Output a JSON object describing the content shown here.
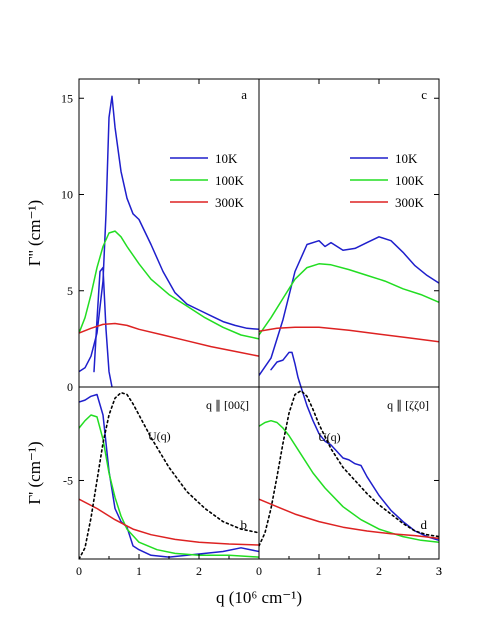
{
  "chart_data": [
    {
      "panel": "a",
      "type": "line",
      "ylabel": "Γ'' (cm⁻¹)",
      "xlim": [
        0,
        3
      ],
      "ylim": [
        0,
        16
      ],
      "yticks": [
        0,
        5,
        10,
        15
      ],
      "legend": {
        "placement": "top-right",
        "entries": [
          "10K",
          "100K",
          "300K"
        ]
      },
      "series": [
        {
          "name": "10K",
          "color": "#1f1fcc",
          "x": [
            0,
            0.1,
            0.2,
            0.3,
            0.4,
            0.45,
            0.5,
            0.55,
            0.6,
            0.7,
            0.8,
            0.9,
            1.0,
            1.2,
            1.4,
            1.6,
            1.8,
            2.0,
            2.2,
            2.4,
            2.6,
            2.8,
            3.0
          ],
          "y": [
            0.8,
            1.0,
            1.6,
            2.8,
            5.5,
            9.0,
            14.0,
            15.1,
            13.5,
            11.2,
            9.8,
            9.0,
            8.7,
            7.4,
            6.0,
            4.9,
            4.3,
            4.0,
            3.7,
            3.4,
            3.2,
            3.05,
            3.0
          ]
        },
        {
          "name": "10K",
          "color": "#1f1fcc",
          "x": [
            0.25,
            0.3,
            0.35,
            0.4,
            0.45,
            0.5,
            0.55
          ],
          "y": [
            0.8,
            3.5,
            6.0,
            6.2,
            3.0,
            0.8,
            0.0
          ]
        },
        {
          "name": "100K",
          "color": "#22dd22",
          "x": [
            0,
            0.1,
            0.2,
            0.3,
            0.4,
            0.5,
            0.6,
            0.7,
            0.8,
            1.0,
            1.2,
            1.5,
            1.8,
            2.1,
            2.4,
            2.7,
            3.0
          ],
          "y": [
            2.8,
            3.6,
            4.8,
            6.2,
            7.3,
            8.0,
            8.1,
            7.8,
            7.3,
            6.4,
            5.6,
            4.8,
            4.2,
            3.6,
            3.1,
            2.7,
            2.5
          ]
        },
        {
          "name": "300K",
          "color": "#dd2222",
          "x": [
            0,
            0.2,
            0.4,
            0.6,
            0.8,
            1.0,
            1.4,
            1.8,
            2.2,
            2.6,
            3.0
          ],
          "y": [
            2.8,
            3.05,
            3.25,
            3.3,
            3.2,
            3.0,
            2.7,
            2.4,
            2.1,
            1.85,
            1.6
          ]
        }
      ]
    },
    {
      "panel": "c",
      "type": "line",
      "xlim": [
        0,
        3
      ],
      "ylim": [
        0,
        16
      ],
      "legend": {
        "placement": "top-right",
        "entries": [
          "10K",
          "100K",
          "300K"
        ]
      },
      "series": [
        {
          "name": "10K",
          "color": "#1f1fcc",
          "x": [
            0,
            0.2,
            0.4,
            0.6,
            0.8,
            1.0,
            1.1,
            1.2,
            1.4,
            1.6,
            1.8,
            2.0,
            2.2,
            2.4,
            2.6,
            2.8,
            3.0
          ],
          "y": [
            0.6,
            1.5,
            3.5,
            6.0,
            7.4,
            7.6,
            7.3,
            7.5,
            7.1,
            7.2,
            7.5,
            7.8,
            7.6,
            7.0,
            6.3,
            5.8,
            5.4
          ]
        },
        {
          "name": "10K",
          "color": "#1f1fcc",
          "x": [
            0.2,
            0.3,
            0.4,
            0.5,
            0.55,
            0.6,
            0.65,
            0.7
          ],
          "y": [
            0.9,
            1.3,
            1.4,
            1.8,
            1.8,
            1.2,
            0.5,
            0.0
          ]
        },
        {
          "name": "100K",
          "color": "#22dd22",
          "x": [
            0,
            0.2,
            0.4,
            0.6,
            0.8,
            1.0,
            1.2,
            1.5,
            1.8,
            2.1,
            2.4,
            2.7,
            3.0
          ],
          "y": [
            2.7,
            3.6,
            4.6,
            5.6,
            6.2,
            6.4,
            6.35,
            6.1,
            5.8,
            5.5,
            5.1,
            4.8,
            4.4
          ]
        },
        {
          "name": "300K",
          "color": "#dd2222",
          "x": [
            0,
            0.3,
            0.6,
            1.0,
            1.5,
            2.0,
            2.5,
            3.0
          ],
          "y": [
            2.9,
            3.05,
            3.1,
            3.1,
            2.95,
            2.75,
            2.55,
            2.35
          ]
        }
      ]
    },
    {
      "panel": "b",
      "type": "line",
      "ylabel": "Γ' (cm⁻¹)",
      "xlim": [
        0,
        3
      ],
      "ylim": [
        -9.2,
        0
      ],
      "yticks": [
        -5
      ],
      "title": "q ∥ [00ζ]",
      "annotation": "U(q)",
      "series": [
        {
          "name": "10K",
          "color": "#1f1fcc",
          "x": [
            0,
            0.1,
            0.2,
            0.3,
            0.4,
            0.5,
            0.6,
            0.7,
            0.8,
            0.9,
            1.0,
            1.2,
            1.5,
            1.8,
            2.1,
            2.4,
            2.7,
            3.0
          ],
          "y": [
            -0.8,
            -0.7,
            -0.5,
            -0.4,
            -1.5,
            -4.5,
            -6.5,
            -7.2,
            -7.5,
            -8.5,
            -8.7,
            -9.0,
            -9.1,
            -9.0,
            -8.9,
            -8.8,
            -8.6,
            -8.8
          ]
        },
        {
          "name": "100K",
          "color": "#22dd22",
          "x": [
            0,
            0.1,
            0.2,
            0.3,
            0.4,
            0.5,
            0.6,
            0.7,
            0.8,
            1.0,
            1.3,
            1.6,
            2.0,
            2.5,
            3.0
          ],
          "y": [
            -2.2,
            -1.8,
            -1.5,
            -1.6,
            -2.8,
            -4.6,
            -5.9,
            -6.9,
            -7.6,
            -8.3,
            -8.7,
            -8.9,
            -9.0,
            -9.0,
            -9.1
          ]
        },
        {
          "name": "300K",
          "color": "#dd2222",
          "x": [
            0,
            0.3,
            0.6,
            0.9,
            1.2,
            1.6,
            2.0,
            2.5,
            3.0
          ],
          "y": [
            -6.0,
            -6.5,
            -7.1,
            -7.6,
            -7.9,
            -8.15,
            -8.3,
            -8.4,
            -8.45
          ]
        },
        {
          "name": "U(q)",
          "color": "#000000",
          "dash": true,
          "x": [
            0,
            0.1,
            0.2,
            0.3,
            0.4,
            0.5,
            0.6,
            0.7,
            0.8,
            0.9,
            1.0,
            1.2,
            1.5,
            1.8,
            2.1,
            2.4,
            2.7,
            3.0
          ],
          "y": [
            -9.2,
            -8.6,
            -7.0,
            -5.0,
            -3.0,
            -1.5,
            -0.6,
            -0.3,
            -0.4,
            -0.9,
            -1.5,
            -2.7,
            -4.3,
            -5.6,
            -6.5,
            -7.2,
            -7.6,
            -7.8
          ]
        }
      ]
    },
    {
      "panel": "d",
      "type": "line",
      "xlim": [
        0,
        3
      ],
      "ylim": [
        -9.2,
        0
      ],
      "title": "q ∥ [ζζ0]",
      "annotation": "U(q)",
      "series": [
        {
          "name": "10K",
          "color": "#1f1fcc",
          "x": [
            0.7,
            0.8,
            0.9,
            1.0,
            1.1,
            1.2,
            1.4,
            1.5,
            1.6,
            1.7,
            1.8,
            2.0,
            2.2,
            2.4,
            2.6,
            2.8,
            3.0
          ],
          "y": [
            0.0,
            -1.0,
            -1.8,
            -2.5,
            -2.9,
            -3.1,
            -3.8,
            -3.9,
            -4.1,
            -4.2,
            -4.8,
            -5.8,
            -6.6,
            -7.2,
            -7.7,
            -8.0,
            -8.2
          ]
        },
        {
          "name": "100K",
          "color": "#22dd22",
          "x": [
            0,
            0.1,
            0.2,
            0.3,
            0.4,
            0.5,
            0.7,
            0.9,
            1.1,
            1.4,
            1.7,
            2.0,
            2.4,
            2.7,
            3.0
          ],
          "y": [
            -2.1,
            -1.9,
            -1.8,
            -1.9,
            -2.2,
            -2.6,
            -3.6,
            -4.6,
            -5.4,
            -6.4,
            -7.1,
            -7.6,
            -8.0,
            -8.2,
            -8.3
          ]
        },
        {
          "name": "300K",
          "color": "#dd2222",
          "x": [
            0,
            0.3,
            0.6,
            1.0,
            1.4,
            1.8,
            2.2,
            2.6,
            3.0
          ],
          "y": [
            -6.0,
            -6.4,
            -6.8,
            -7.2,
            -7.5,
            -7.7,
            -7.85,
            -7.95,
            -8.1
          ]
        },
        {
          "name": "U(q)",
          "color": "#000000",
          "dash": true,
          "x": [
            0,
            0.1,
            0.2,
            0.3,
            0.4,
            0.5,
            0.6,
            0.7,
            0.8,
            0.9,
            1.0,
            1.2,
            1.4,
            1.6,
            1.8,
            2.0,
            2.2,
            2.4,
            2.6,
            2.8,
            3.0
          ],
          "y": [
            -8.5,
            -7.8,
            -6.5,
            -4.8,
            -3.0,
            -1.4,
            -0.4,
            -0.2,
            -0.5,
            -1.2,
            -2.0,
            -3.3,
            -4.3,
            -5.0,
            -5.7,
            -6.3,
            -6.8,
            -7.3,
            -7.7,
            -7.9,
            -8.0
          ]
        }
      ]
    }
  ],
  "shared": {
    "xlabel": "q (10⁶ cm⁻¹)",
    "xticks": [
      "0",
      "1",
      "2",
      "3"
    ]
  }
}
